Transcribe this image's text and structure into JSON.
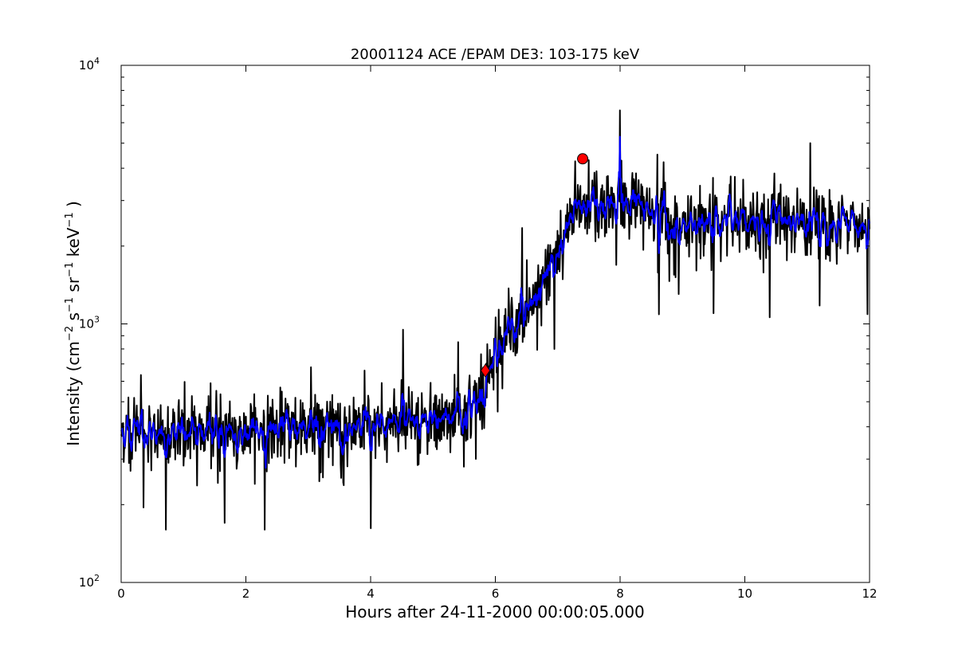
{
  "chart_data": {
    "type": "line",
    "title": "20001124 ACE /EPAM DE3: 103-175 keV",
    "xlabel": "Hours after 24-11-2000 00:00:05.000",
    "ylabel": "Intensity (cm⁻² s⁻¹ sr⁻¹ keV⁻¹ )",
    "ylabel_parts": {
      "prefix": "Intensity (cm",
      "exp_cm": "−2",
      "s": " s",
      "exp_s": "−1",
      "sr": " sr",
      "exp_sr": "−1",
      "kev": " keV",
      "exp_kev": "−1",
      "suffix": " )"
    },
    "xlim": [
      0,
      12
    ],
    "ylim": [
      100,
      10000
    ],
    "yscale": "log",
    "grid": false,
    "x_ticks": [
      {
        "value": 0,
        "label": "0"
      },
      {
        "value": 2,
        "label": "2"
      },
      {
        "value": 4,
        "label": "4"
      },
      {
        "value": 6,
        "label": "6"
      },
      {
        "value": 8,
        "label": "8"
      },
      {
        "value": 10,
        "label": "10"
      },
      {
        "value": 12,
        "label": "12"
      }
    ],
    "y_ticks": [
      {
        "value": 100,
        "base": "10",
        "exp": "2"
      },
      {
        "value": 1000,
        "base": "10",
        "exp": "3"
      },
      {
        "value": 10000,
        "base": "10",
        "exp": "4"
      }
    ],
    "series": [
      {
        "color": "#000000",
        "style": "raw",
        "profile_x": [
          0,
          1,
          2,
          3,
          4,
          5,
          5.5,
          5.8,
          6.0,
          6.3,
          6.6,
          6.9,
          7.1,
          7.3,
          7.6,
          8.0,
          8.3,
          8.6,
          9,
          10,
          11,
          12
        ],
        "profile_y": [
          390,
          390,
          385,
          395,
          405,
          415,
          440,
          560,
          760,
          950,
          1300,
          1750,
          2050,
          2750,
          2850,
          3050,
          2750,
          2500,
          2450,
          2550,
          2550,
          2350
        ],
        "spikes": [
          {
            "x": 0.36,
            "y": 195
          },
          {
            "x": 0.72,
            "y": 160
          },
          {
            "x": 1.66,
            "y": 170
          },
          {
            "x": 2.3,
            "y": 160
          },
          {
            "x": 3.04,
            "y": 680
          },
          {
            "x": 3.9,
            "y": 660
          },
          {
            "x": 4.0,
            "y": 162
          },
          {
            "x": 4.52,
            "y": 950
          },
          {
            "x": 5.4,
            "y": 850
          },
          {
            "x": 6.43,
            "y": 2350
          },
          {
            "x": 6.95,
            "y": 800
          },
          {
            "x": 7.5,
            "y": 4300
          },
          {
            "x": 8.0,
            "y": 6700
          },
          {
            "x": 8.3,
            "y": 3600
          },
          {
            "x": 9.5,
            "y": 1100
          },
          {
            "x": 10.4,
            "y": 1060
          },
          {
            "x": 11.05,
            "y": 5000
          },
          {
            "x": 11.97,
            "y": 1090
          }
        ]
      },
      {
        "color": "#0000ff",
        "style": "smoothed",
        "profile_x": [
          0,
          1,
          2,
          3,
          4,
          5,
          5.5,
          5.8,
          6.0,
          6.3,
          6.6,
          6.9,
          7.1,
          7.3,
          7.6,
          8.0,
          8.3,
          8.6,
          9,
          10,
          11,
          12
        ],
        "profile_y": [
          390,
          390,
          385,
          395,
          405,
          415,
          440,
          560,
          760,
          950,
          1300,
          1750,
          2050,
          2750,
          2850,
          3050,
          2750,
          2500,
          2450,
          2550,
          2550,
          2350
        ],
        "spikes": [
          {
            "x": 8.0,
            "y": 5300
          }
        ]
      }
    ],
    "markers": [
      {
        "shape": "diamond",
        "x": 5.84,
        "y": 660,
        "color": "#ff0000"
      },
      {
        "shape": "circle",
        "x": 7.4,
        "y": 4350,
        "color": "#ff0000"
      }
    ]
  }
}
